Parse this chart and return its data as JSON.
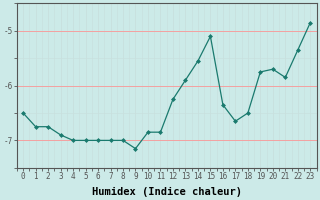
{
  "xlabel": "Humidex (Indice chaleur)",
  "x": [
    0,
    1,
    2,
    3,
    4,
    5,
    6,
    7,
    8,
    9,
    10,
    11,
    12,
    13,
    14,
    15,
    16,
    17,
    18,
    19,
    20,
    21,
    22,
    23
  ],
  "y": [
    -6.5,
    -6.75,
    -6.75,
    -6.9,
    -7.0,
    -7.0,
    -7.0,
    -7.0,
    -7.0,
    -7.15,
    -6.85,
    -6.85,
    -6.25,
    -5.9,
    -5.55,
    -5.1,
    -6.35,
    -6.65,
    -6.5,
    -5.75,
    -5.7,
    -5.85,
    -5.35,
    -4.85
  ],
  "line_color": "#1a7a6e",
  "marker": "D",
  "markersize": 2.0,
  "linewidth": 0.9,
  "bg_color": "#cceae8",
  "grid_major_color": "#f4a0a0",
  "grid_minor_color": "#c8e0de",
  "axis_color": "#555555",
  "ylim": [
    -7.5,
    -4.5
  ],
  "yticks": [
    -7,
    -6,
    -5
  ],
  "xlim": [
    -0.5,
    23.5
  ],
  "xlabel_fontsize": 7.5,
  "tick_fontsize": 5.5
}
